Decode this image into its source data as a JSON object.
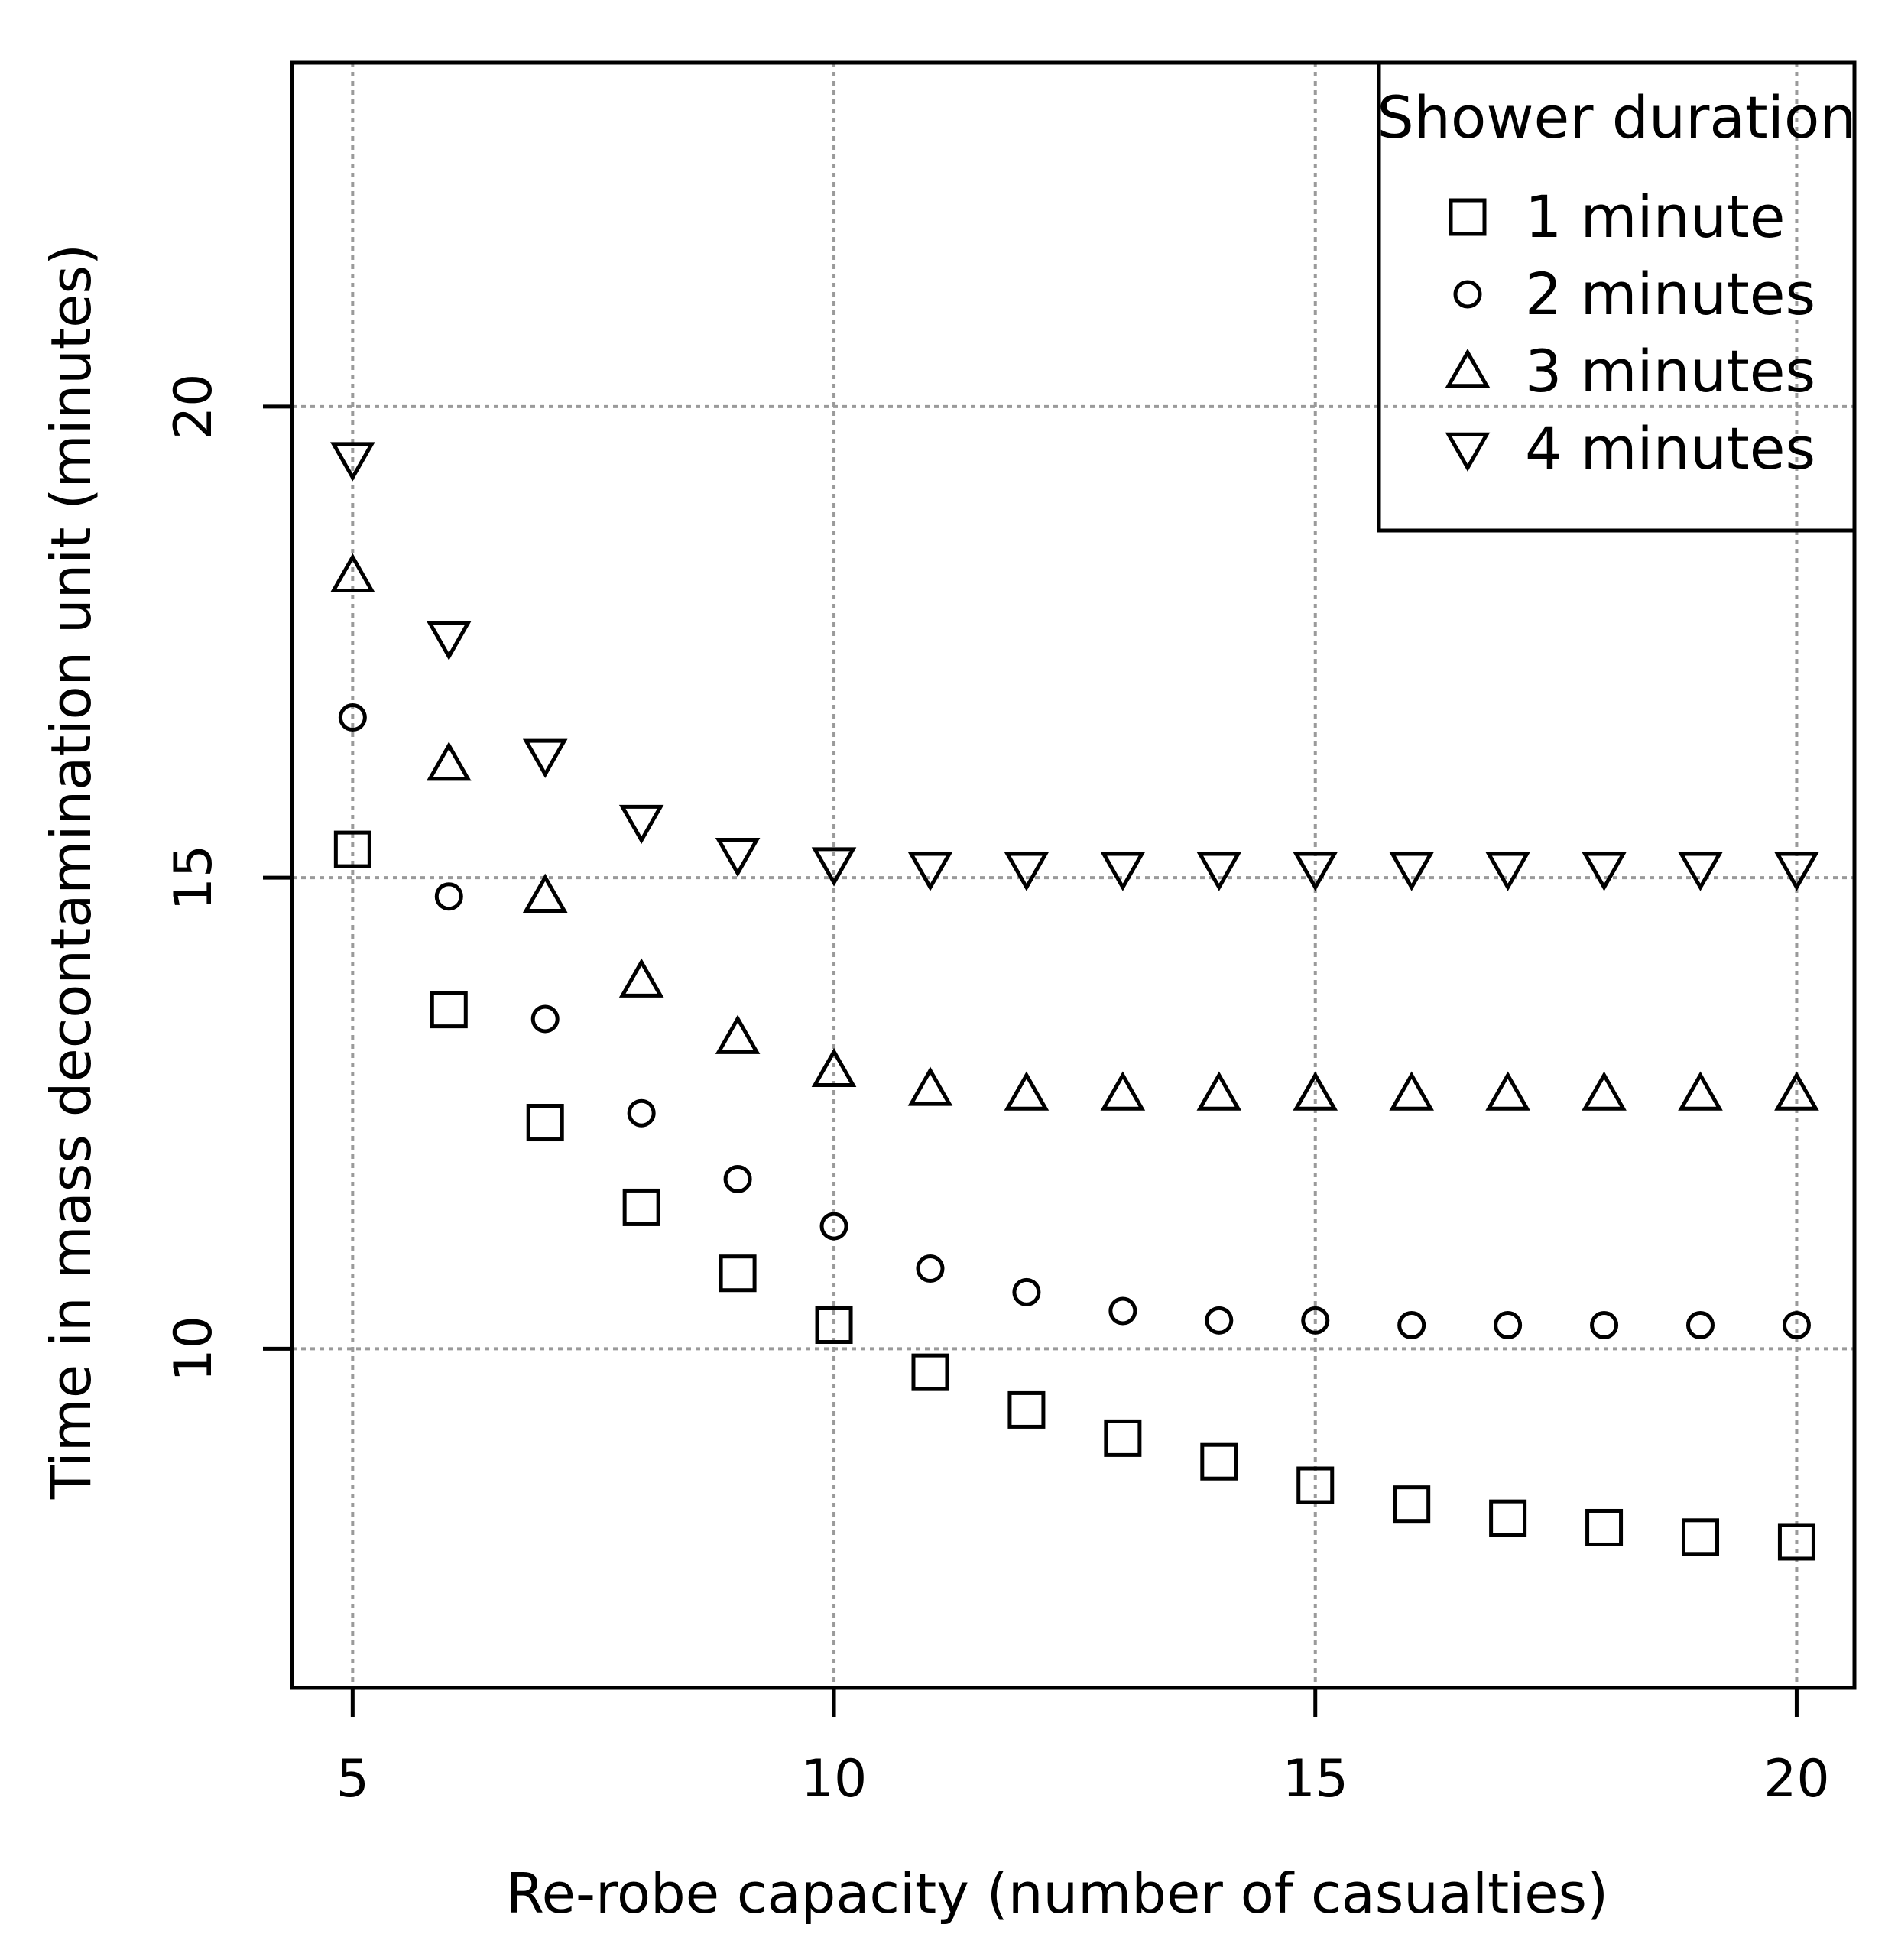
{
  "chart_data": {
    "type": "scatter",
    "title": "",
    "xlabel": "Re-robe capacity (number of casualties)",
    "ylabel": "Time in mass decontamination unit (minutes)",
    "xlim": [
      4.37,
      20.6
    ],
    "ylim": [
      6.4,
      23.65
    ],
    "xticks": [
      5,
      10,
      15,
      20
    ],
    "yticks": [
      10,
      15,
      20
    ],
    "grid": true,
    "legend": {
      "title": "Shower duration",
      "placement": "top-right"
    },
    "x": [
      5,
      6,
      7,
      8,
      9,
      10,
      11,
      12,
      13,
      14,
      15,
      16,
      17,
      18,
      19,
      20
    ],
    "series": [
      {
        "name": "1 minute",
        "marker": "square",
        "values": [
          15.3,
          13.6,
          12.4,
          11.5,
          10.8,
          10.25,
          9.75,
          9.35,
          9.05,
          8.8,
          8.55,
          8.35,
          8.2,
          8.1,
          8.0,
          7.95
        ]
      },
      {
        "name": "2 minutes",
        "marker": "circle",
        "values": [
          16.7,
          14.8,
          13.5,
          12.5,
          11.8,
          11.3,
          10.85,
          10.6,
          10.4,
          10.3,
          10.3,
          10.25,
          10.25,
          10.25,
          10.25,
          10.25
        ]
      },
      {
        "name": "3 minutes",
        "marker": "triangle-up",
        "values": [
          18.2,
          16.2,
          14.8,
          13.9,
          13.3,
          12.95,
          12.75,
          12.7,
          12.7,
          12.7,
          12.7,
          12.7,
          12.7,
          12.7,
          12.7,
          12.7
        ]
      },
      {
        "name": "4 minutes",
        "marker": "triangle-down",
        "values": [
          19.45,
          17.55,
          16.3,
          15.6,
          15.25,
          15.15,
          15.1,
          15.1,
          15.1,
          15.1,
          15.1,
          15.1,
          15.1,
          15.1,
          15.1,
          15.1
        ]
      }
    ]
  }
}
